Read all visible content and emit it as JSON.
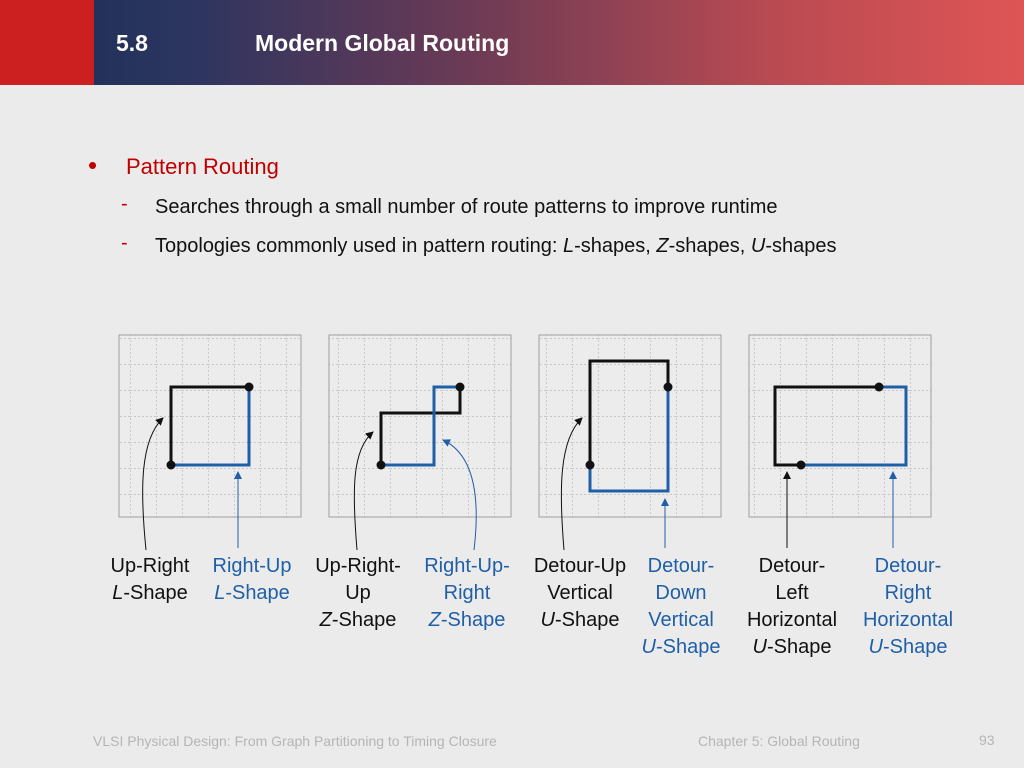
{
  "header": {
    "section_number": "5.8",
    "title": "Modern Global Routing"
  },
  "bullet": {
    "title": "Pattern Routing",
    "subitems": [
      {
        "text": "Searches through a small number of route patterns to improve runtime"
      },
      {
        "prefix": "Topologies commonly used in pattern routing: ",
        "l": "L",
        "l_suffix": "-shapes, ",
        "z": "Z",
        "z_suffix": "-shapes, ",
        "u": "U",
        "u_suffix": "-shapes"
      }
    ]
  },
  "labels": {
    "up_right_l": {
      "line1": "Up-Right",
      "it": "L",
      "rest": "-Shape"
    },
    "right_up_l": {
      "line1": "Right-Up",
      "it": "L",
      "rest": "-Shape"
    },
    "up_right_up_z": {
      "line1": "Up-Right-",
      "line2": "Up",
      "it": "Z",
      "rest": "-Shape"
    },
    "right_up_right_z": {
      "line1": "Right-Up-",
      "line2": "Right",
      "it": "Z",
      "rest": "-Shape"
    },
    "detour_up_u": {
      "line1": "Detour-Up",
      "line2": "Vertical",
      "it": "U",
      "rest": "-Shape"
    },
    "detour_down_u": {
      "line1": "Detour-",
      "line2": "Down",
      "line3": "Vertical",
      "it": "U",
      "rest": "-Shape"
    },
    "detour_left_u": {
      "line1": "Detour-",
      "line2": "Left",
      "line3": "Horizontal",
      "it": "U",
      "rest": "-Shape"
    },
    "detour_right_u": {
      "line1": "Detour-",
      "line2": "Right",
      "line3": "Horizontal",
      "it": "U",
      "rest": "-Shape"
    }
  },
  "colors": {
    "black_route": "#111111",
    "blue_route": "#1f5fa8",
    "bullet_red": "#c00000"
  },
  "footer": {
    "left": "VLSI Physical Design: From Graph Partitioning to Timing Closure",
    "center": "Chapter 5: Global Routing",
    "page": "93"
  }
}
